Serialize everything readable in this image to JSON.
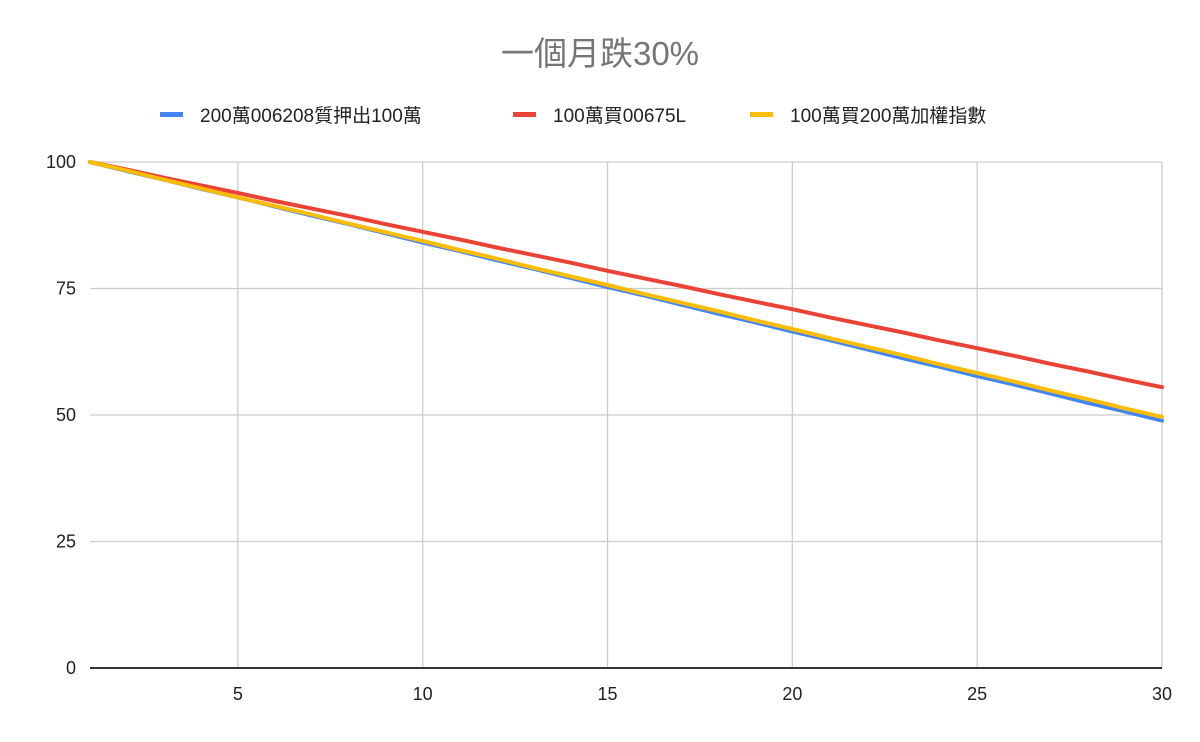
{
  "chart_data": {
    "type": "line",
    "title": "一個月跌30%",
    "xlabel": "",
    "ylabel": "",
    "xlim": [
      1,
      30
    ],
    "ylim": [
      0,
      100
    ],
    "grid": true,
    "legend_position": "top",
    "x_ticks": [
      5,
      10,
      15,
      20,
      25,
      30
    ],
    "y_ticks": [
      0,
      25,
      50,
      75,
      100
    ],
    "x": [
      1,
      2,
      3,
      4,
      5,
      6,
      7,
      8,
      9,
      10,
      11,
      12,
      13,
      14,
      15,
      16,
      17,
      18,
      19,
      20,
      21,
      22,
      23,
      24,
      25,
      26,
      27,
      28,
      29,
      30
    ],
    "series": [
      {
        "name": "200萬006208質押出100萬",
        "color": "#4285F4",
        "values": [
          100,
          98.2,
          96.5,
          94.7,
          93.0,
          91.2,
          89.4,
          87.7,
          85.9,
          84.1,
          82.4,
          80.6,
          78.9,
          77.1,
          75.3,
          73.6,
          71.8,
          70.0,
          68.3,
          66.5,
          64.8,
          63.0,
          61.2,
          59.5,
          57.7,
          56.0,
          54.2,
          52.4,
          50.7,
          48.9
        ]
      },
      {
        "name": "100萬買00675L",
        "color": "#EA4335",
        "values": [
          100,
          98.5,
          96.9,
          95.4,
          93.9,
          92.3,
          90.8,
          89.3,
          87.7,
          86.2,
          84.7,
          83.1,
          81.6,
          80.1,
          78.5,
          77.0,
          75.5,
          73.9,
          72.4,
          70.9,
          69.3,
          67.8,
          66.3,
          64.7,
          63.2,
          61.7,
          60.1,
          58.6,
          57.0,
          55.5
        ]
      },
      {
        "name": "100萬買200萬加權指數",
        "color": "#FBBC04",
        "values": [
          100,
          98.3,
          96.5,
          94.8,
          93.0,
          91.3,
          89.6,
          87.8,
          86.1,
          84.4,
          82.6,
          80.9,
          79.1,
          77.4,
          75.7,
          73.9,
          72.2,
          70.5,
          68.7,
          67.0,
          65.2,
          63.5,
          61.8,
          60.0,
          58.3,
          56.6,
          54.8,
          53.1,
          51.3,
          49.6
        ]
      }
    ]
  },
  "colors": {
    "title": "#757575",
    "grid": "#cccccc",
    "axis": "#333333"
  }
}
